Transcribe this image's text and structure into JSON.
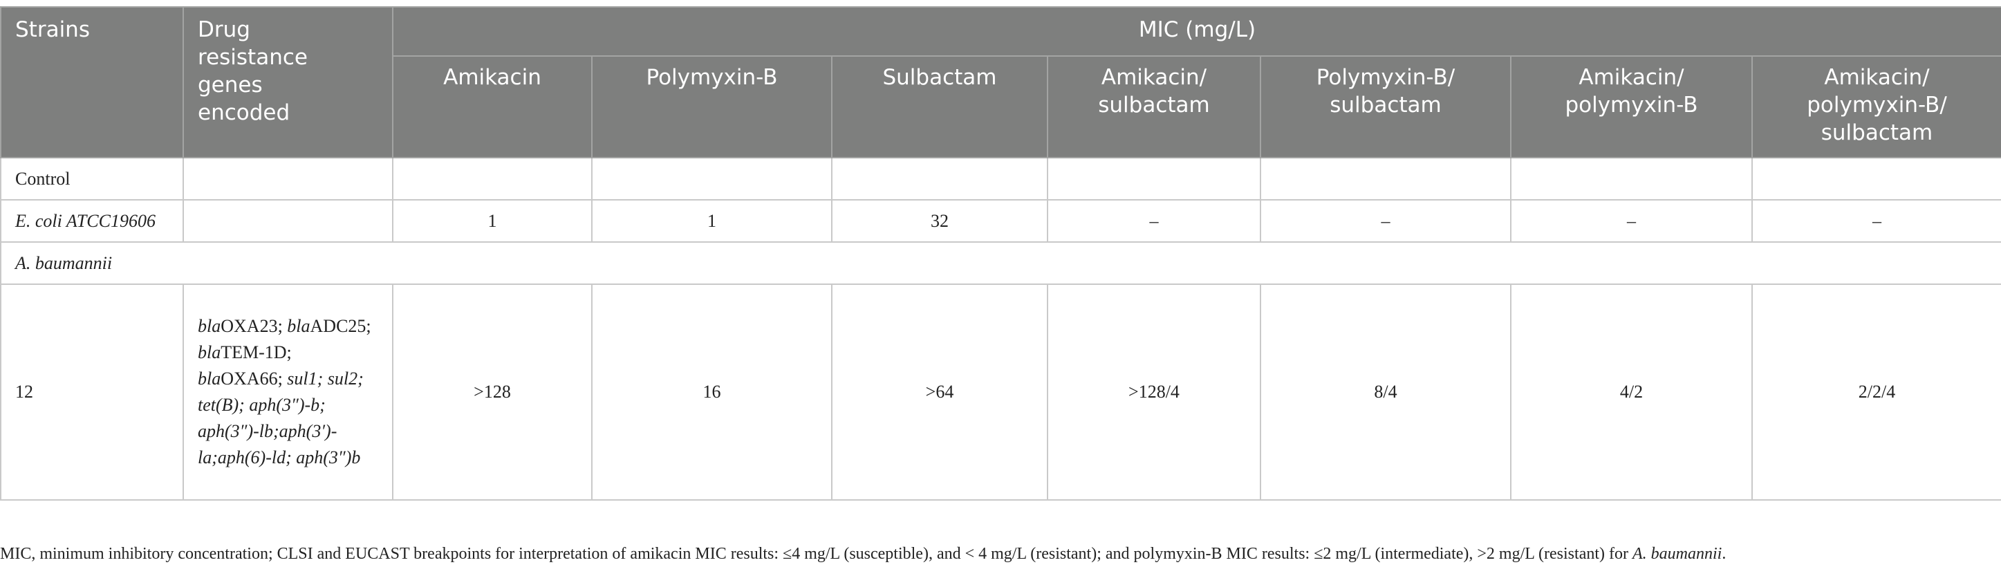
{
  "table": {
    "header": {
      "strains": "Strains",
      "genes": "Drug resistance genes encoded",
      "mic": "MIC (mg/L)",
      "columns": [
        "Amikacin",
        "Polymyxin-B",
        "Sulbactam",
        "Amikacin/ sulbactam",
        "Polymyxin-B/ sulbactam",
        "Amikacin/ polymyxin-B",
        "Amikacin/ polymyxin-B/ sulbactam"
      ]
    },
    "rows": [
      {
        "strain": "Control"
      },
      {
        "strain": "E. coli ATCC19606",
        "values": [
          1,
          1,
          32,
          "–",
          "–",
          "–",
          "–"
        ]
      },
      {
        "group": "A. baumannii"
      },
      {
        "strain": 12,
        "genes": [
          {
            "text": "bla",
            "italic": true
          },
          {
            "text": "OXA23; "
          },
          {
            "text": "bla",
            "italic": true
          },
          {
            "text": "ADC25; "
          },
          {
            "text": "bla",
            "italic": true
          },
          {
            "text": "TEM-1D; "
          },
          {
            "text": "bla",
            "italic": true
          },
          {
            "text": "OXA66; "
          },
          {
            "text": "sul1; sul2; tet(B); aph(3″)-b; aph(3″)-lb;aph(3′)-la;aph(6)-ld; aph(3″)b",
            "italic": true
          }
        ],
        "values": [
          ">128",
          16,
          ">64",
          ">128/4",
          "8/4",
          "4/2",
          "2/2/4"
        ]
      }
    ]
  },
  "footnote": [
    {
      "text": "MIC, minimum inhibitory concentration; CLSI and EUCAST breakpoints for interpretation of amikacin MIC results: ≤4 mg/L (susceptible), and < 4 mg/L (resistant); and polymyxin-B MIC results: ≤2 mg/L (intermediate), >2 mg/L (resistant) for "
    },
    {
      "text": "A. baumannii",
      "italic": true
    },
    {
      "text": "."
    }
  ]
}
